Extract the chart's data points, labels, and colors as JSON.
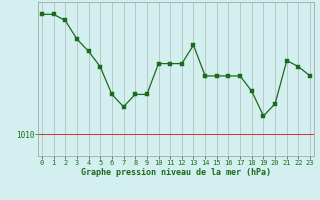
{
  "x": [
    0,
    1,
    2,
    3,
    4,
    5,
    6,
    7,
    8,
    9,
    10,
    11,
    12,
    13,
    14,
    15,
    16,
    17,
    18,
    19,
    20,
    21,
    22,
    23
  ],
  "y": [
    1029.5,
    1029.5,
    1028.5,
    1025.5,
    1023.5,
    1021.0,
    1016.5,
    1014.5,
    1016.5,
    1016.5,
    1021.5,
    1021.5,
    1021.5,
    1024.5,
    1019.5,
    1019.5,
    1019.5,
    1019.5,
    1017.0,
    1013.0,
    1015.0,
    1022.0,
    1021.0,
    1019.5
  ],
  "line_color": "#1a6b1a",
  "marker_color": "#1a6b1a",
  "bg_color": "#d4efef",
  "grid_color": "#b0b8b8",
  "axis_label_color": "#1a6b1a",
  "xlabel": "Graphe pression niveau de la mer (hPa)",
  "ytick_label": "1010",
  "ytick_val": 1010,
  "ylim_min": 1006.5,
  "ylim_max": 1031.5,
  "xlim_min": -0.3,
  "xlim_max": 23.3,
  "redline_color": "#cc3333"
}
